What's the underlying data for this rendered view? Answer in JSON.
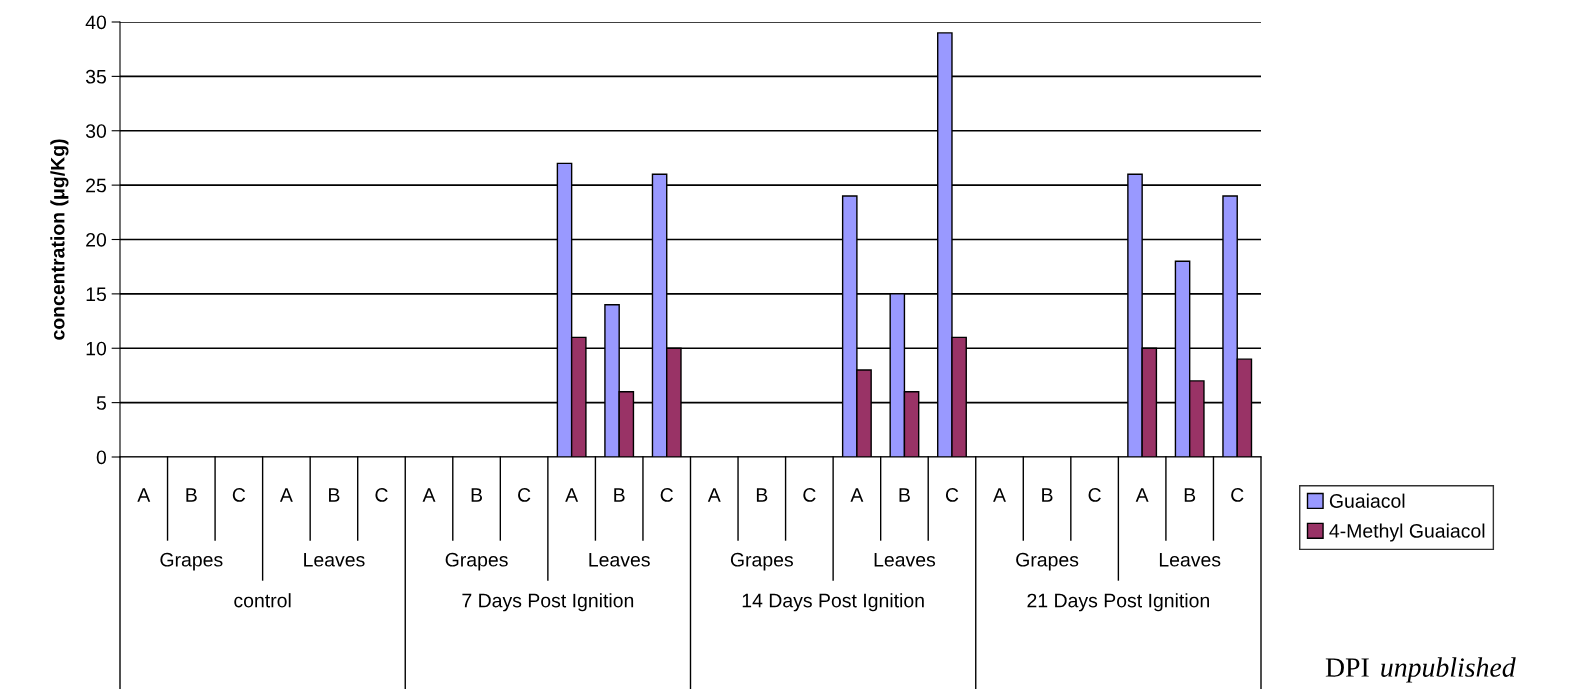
{
  "chart_data": {
    "type": "bar",
    "ylabel": "concentration (μg/Kg)",
    "categories": [
      "A",
      "B",
      "C",
      "A",
      "B",
      "C",
      "A",
      "B",
      "C",
      "A",
      "B",
      "C",
      "A",
      "B",
      "C",
      "A",
      "B",
      "C",
      "A",
      "B",
      "C",
      "A",
      "B",
      "C"
    ],
    "series": [
      {
        "name": "Guaiacol",
        "color": "#9999ff",
        "values": [
          0,
          0,
          0,
          0,
          0,
          0,
          0,
          0,
          0,
          27,
          14,
          26,
          0,
          0,
          0,
          24,
          15,
          39,
          0,
          0,
          0,
          26,
          18,
          24
        ]
      },
      {
        "name": "4-Methyl Guaiacol",
        "color": "#993366",
        "values": [
          0,
          0,
          0,
          0,
          0,
          0,
          0,
          0,
          0,
          11,
          6,
          10,
          0,
          0,
          0,
          8,
          6,
          11,
          0,
          0,
          0,
          10,
          7,
          9
        ]
      }
    ],
    "ylim": [
      0,
      40
    ],
    "yticks": [
      0,
      5,
      10,
      15,
      20,
      25,
      30,
      35,
      40
    ],
    "grid": "y",
    "legend": "right",
    "annotations": [
      "Grapes",
      "Leaves",
      "Grapes",
      "Leaves",
      "Grapes",
      "Leaves",
      "Grapes",
      "Leaves",
      "control",
      "7 Days Post Ignition",
      "14 Days Post Ignition",
      "21 Days Post Ignition",
      "DPI",
      "unpublished"
    ]
  }
}
